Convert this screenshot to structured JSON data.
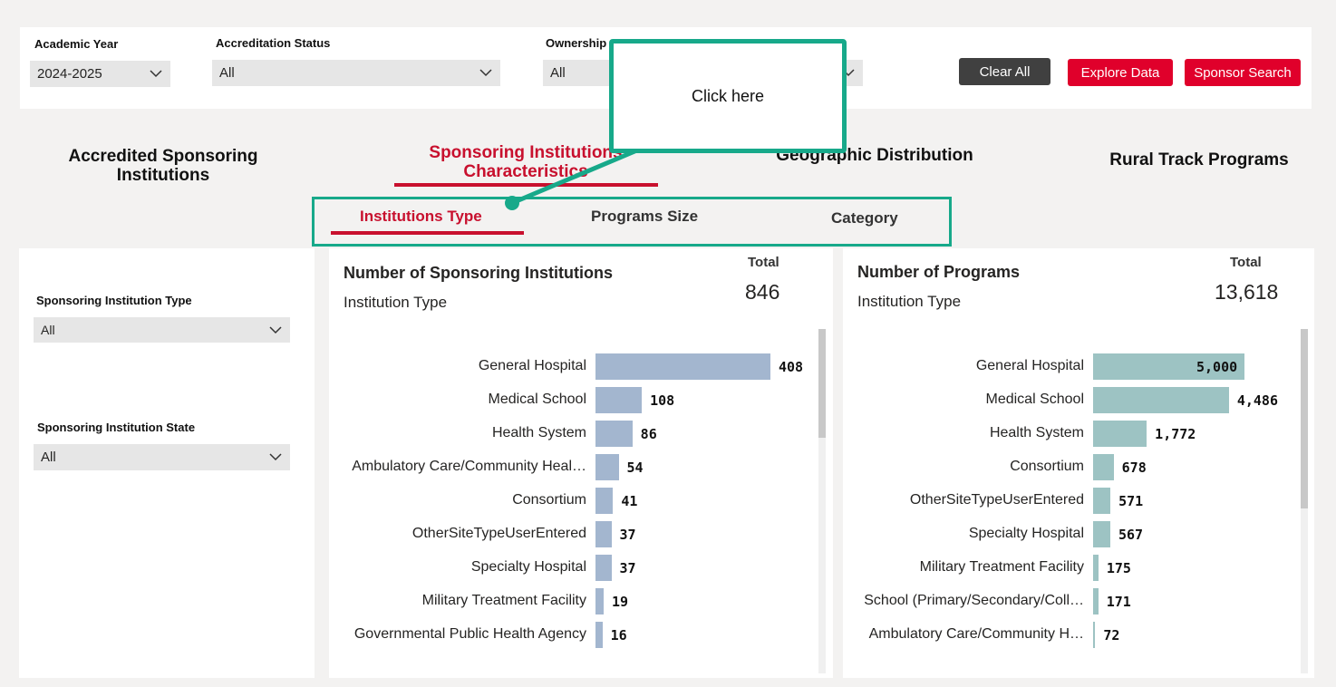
{
  "filters": {
    "academic_year": {
      "label": "Academic Year",
      "value": "2024-2025"
    },
    "accreditation_status": {
      "label": "Accreditation Status",
      "value": "All"
    },
    "ownership": {
      "label": "Ownership",
      "value": "All"
    }
  },
  "buttons": {
    "clear_all": "Clear All",
    "explore_data": "Explore Data",
    "sponsor_search": "Sponsor Search"
  },
  "nav_tabs": {
    "tab1_line1": "Accredited Sponsoring",
    "tab1_line2": "Institutions",
    "tab2_line1": "Sponsoring Institutions",
    "tab2_line2": "Characteristics",
    "tab3": "Geographic Distribution",
    "tab4": "Rural Track Programs"
  },
  "sub_tabs": {
    "institutions_type": "Institutions Type",
    "programs_size": "Programs Size",
    "category": "Category"
  },
  "callout": {
    "text": "Click here"
  },
  "side_filters": {
    "type": {
      "label": "Sponsoring Institution Type",
      "value": "All"
    },
    "state": {
      "label": "Sponsoring Institution State",
      "value": "All"
    }
  },
  "colors": {
    "accent_red": "#c8102e",
    "button_red": "#e0002b",
    "highlight_green": "#17a98a",
    "bar_blue": "#a3b6cf",
    "bar_teal": "#9dc3c3"
  },
  "chart_data": [
    {
      "type": "bar",
      "orientation": "horizontal",
      "title": "Number of Sponsoring Institutions",
      "subtitle": "Institution Type",
      "total_label": "Total",
      "total_value": "846",
      "categories": [
        "General Hospital",
        "Medical School",
        "Health System",
        "Ambulatory Care/Community Heal…",
        "Consortium",
        "OtherSiteTypeUserEntered",
        "Specialty Hospital",
        "Military Treatment Facility",
        "Governmental Public Health Agency"
      ],
      "values": [
        408,
        108,
        86,
        54,
        41,
        37,
        37,
        19,
        16
      ],
      "value_labels": [
        "408",
        "108",
        "86",
        "54",
        "41",
        "37",
        "37",
        "19",
        "16"
      ],
      "grid": false
    },
    {
      "type": "bar",
      "orientation": "horizontal",
      "title": "Number of Programs",
      "subtitle": "Institution Type",
      "total_label": "Total",
      "total_value": "13,618",
      "categories": [
        "General Hospital",
        "Medical School",
        "Health System",
        "Consortium",
        "OtherSiteTypeUserEntered",
        "Specialty Hospital",
        "Military Treatment Facility",
        "School (Primary/Secondary/Coll…",
        "Ambulatory Care/Community H…"
      ],
      "values": [
        5000,
        4486,
        1772,
        678,
        571,
        567,
        175,
        171,
        72
      ],
      "value_labels": [
        "5,000",
        "4,486",
        "1,772",
        "678",
        "571",
        "567",
        "175",
        "171",
        "72"
      ],
      "grid": false
    }
  ]
}
